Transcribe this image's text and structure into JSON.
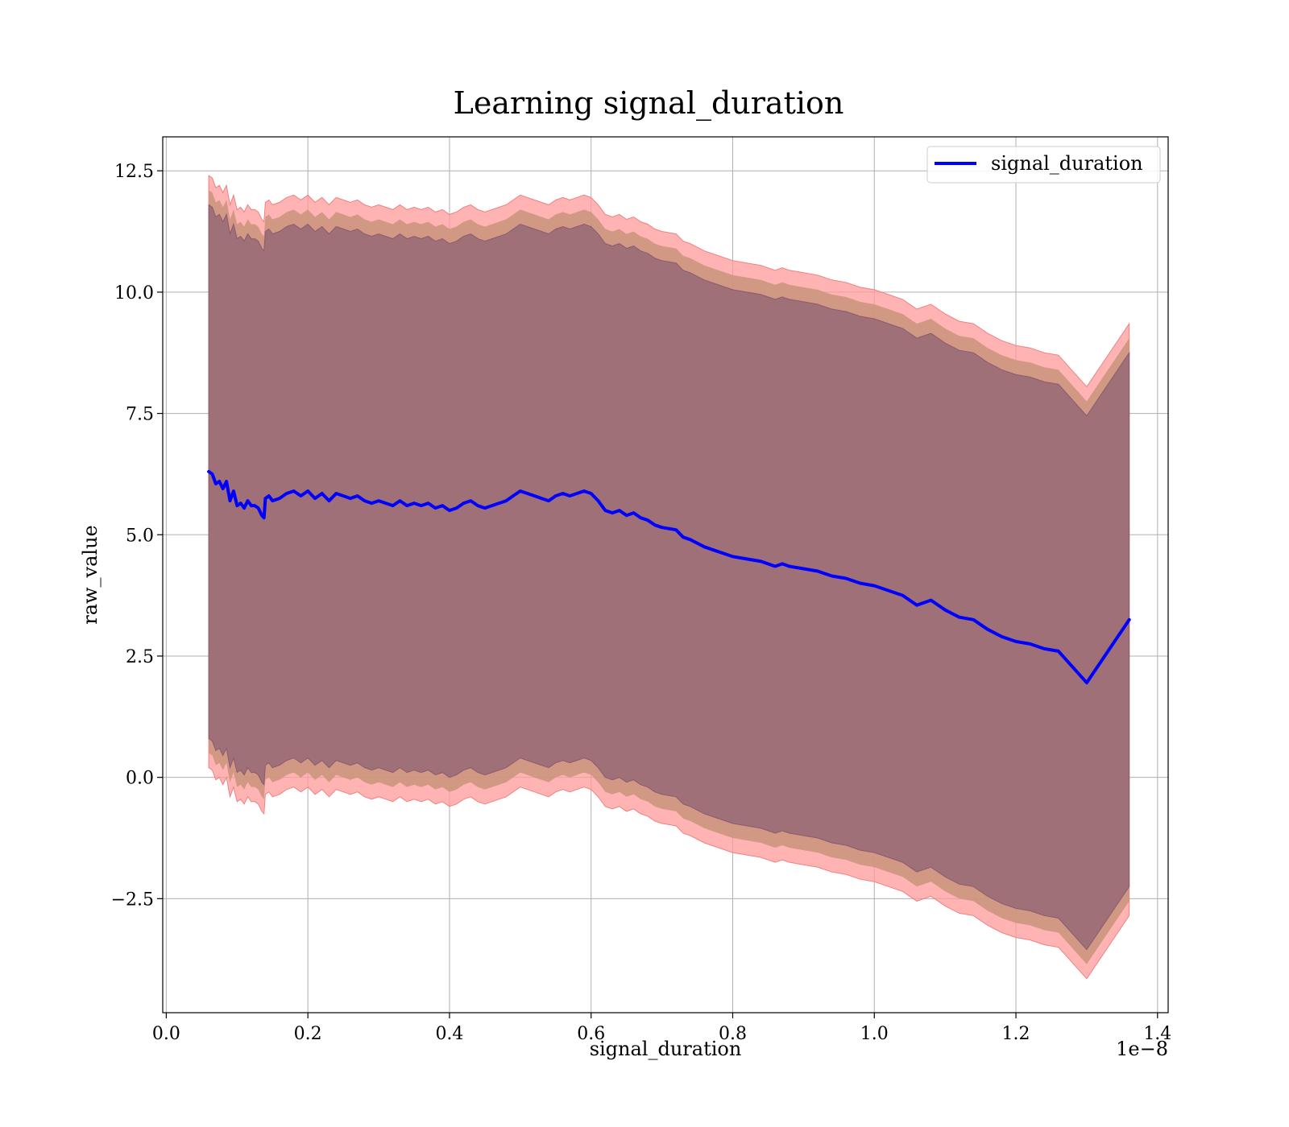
{
  "chart_data": {
    "type": "line",
    "title": "Learning signal_duration",
    "xlabel": "signal_duration",
    "ylabel": "raw_value",
    "x_offset_text": "1e−8",
    "x_scale_factor": 1e-08,
    "xlim": [
      -0.005,
      1.415
    ],
    "ylim": [
      -4.85,
      13.2
    ],
    "xticks": [
      0.0,
      0.2,
      0.4,
      0.6,
      0.8,
      1.0,
      1.2,
      1.4
    ],
    "xtick_labels": [
      "0.0",
      "0.2",
      "0.4",
      "0.6",
      "0.8",
      "1.0",
      "1.2",
      "1.4"
    ],
    "yticks": [
      -2.5,
      0.0,
      2.5,
      5.0,
      7.5,
      10.0,
      12.5
    ],
    "ytick_labels": [
      "−2.5",
      "0.0",
      "2.5",
      "5.0",
      "7.5",
      "10.0",
      "12.5"
    ],
    "grid": true,
    "legend_position": "top-right",
    "series": [
      {
        "name": "signal_duration",
        "color": "#0000ff",
        "x": [
          0.06,
          0.065,
          0.07,
          0.075,
          0.08,
          0.085,
          0.09,
          0.095,
          0.1,
          0.105,
          0.11,
          0.115,
          0.12,
          0.125,
          0.13,
          0.135,
          0.138,
          0.14,
          0.145,
          0.15,
          0.16,
          0.17,
          0.18,
          0.19,
          0.2,
          0.21,
          0.22,
          0.23,
          0.24,
          0.25,
          0.26,
          0.27,
          0.28,
          0.29,
          0.3,
          0.31,
          0.32,
          0.33,
          0.34,
          0.35,
          0.36,
          0.37,
          0.38,
          0.39,
          0.4,
          0.41,
          0.42,
          0.43,
          0.44,
          0.45,
          0.46,
          0.47,
          0.48,
          0.49,
          0.5,
          0.51,
          0.52,
          0.53,
          0.54,
          0.55,
          0.56,
          0.57,
          0.58,
          0.59,
          0.6,
          0.61,
          0.62,
          0.63,
          0.64,
          0.65,
          0.66,
          0.67,
          0.68,
          0.69,
          0.7,
          0.72,
          0.73,
          0.74,
          0.76,
          0.78,
          0.8,
          0.82,
          0.84,
          0.86,
          0.87,
          0.88,
          0.9,
          0.92,
          0.94,
          0.96,
          0.98,
          1.0,
          1.02,
          1.04,
          1.06,
          1.08,
          1.1,
          1.12,
          1.14,
          1.16,
          1.18,
          1.2,
          1.22,
          1.24,
          1.26,
          1.3,
          1.36
        ],
        "values": [
          6.3,
          6.25,
          6.05,
          6.1,
          5.95,
          6.1,
          5.7,
          5.9,
          5.6,
          5.65,
          5.55,
          5.7,
          5.6,
          5.6,
          5.55,
          5.4,
          5.35,
          5.75,
          5.8,
          5.7,
          5.75,
          5.85,
          5.9,
          5.8,
          5.9,
          5.75,
          5.85,
          5.7,
          5.85,
          5.8,
          5.75,
          5.8,
          5.7,
          5.65,
          5.7,
          5.65,
          5.6,
          5.7,
          5.6,
          5.65,
          5.6,
          5.65,
          5.55,
          5.6,
          5.5,
          5.55,
          5.65,
          5.7,
          5.6,
          5.55,
          5.6,
          5.65,
          5.7,
          5.8,
          5.9,
          5.85,
          5.8,
          5.75,
          5.7,
          5.8,
          5.85,
          5.8,
          5.85,
          5.9,
          5.85,
          5.7,
          5.5,
          5.45,
          5.5,
          5.4,
          5.45,
          5.35,
          5.3,
          5.2,
          5.15,
          5.1,
          4.95,
          4.9,
          4.75,
          4.65,
          4.55,
          4.5,
          4.45,
          4.35,
          4.4,
          4.35,
          4.3,
          4.25,
          4.15,
          4.1,
          4.0,
          3.95,
          3.85,
          3.75,
          3.55,
          3.65,
          3.45,
          3.3,
          3.25,
          3.05,
          2.9,
          2.8,
          2.75,
          2.65,
          2.6,
          1.95,
          3.25
        ],
        "band_inner_halfwidth": 5.5,
        "band_outer_halfwidth": 6.1
      }
    ]
  },
  "colors": {
    "line": "#0000ff",
    "outer_band": "#ff9999",
    "middle_band": "#c9947a",
    "inner_band": "#a07078",
    "grid": "#b0b0b0"
  }
}
